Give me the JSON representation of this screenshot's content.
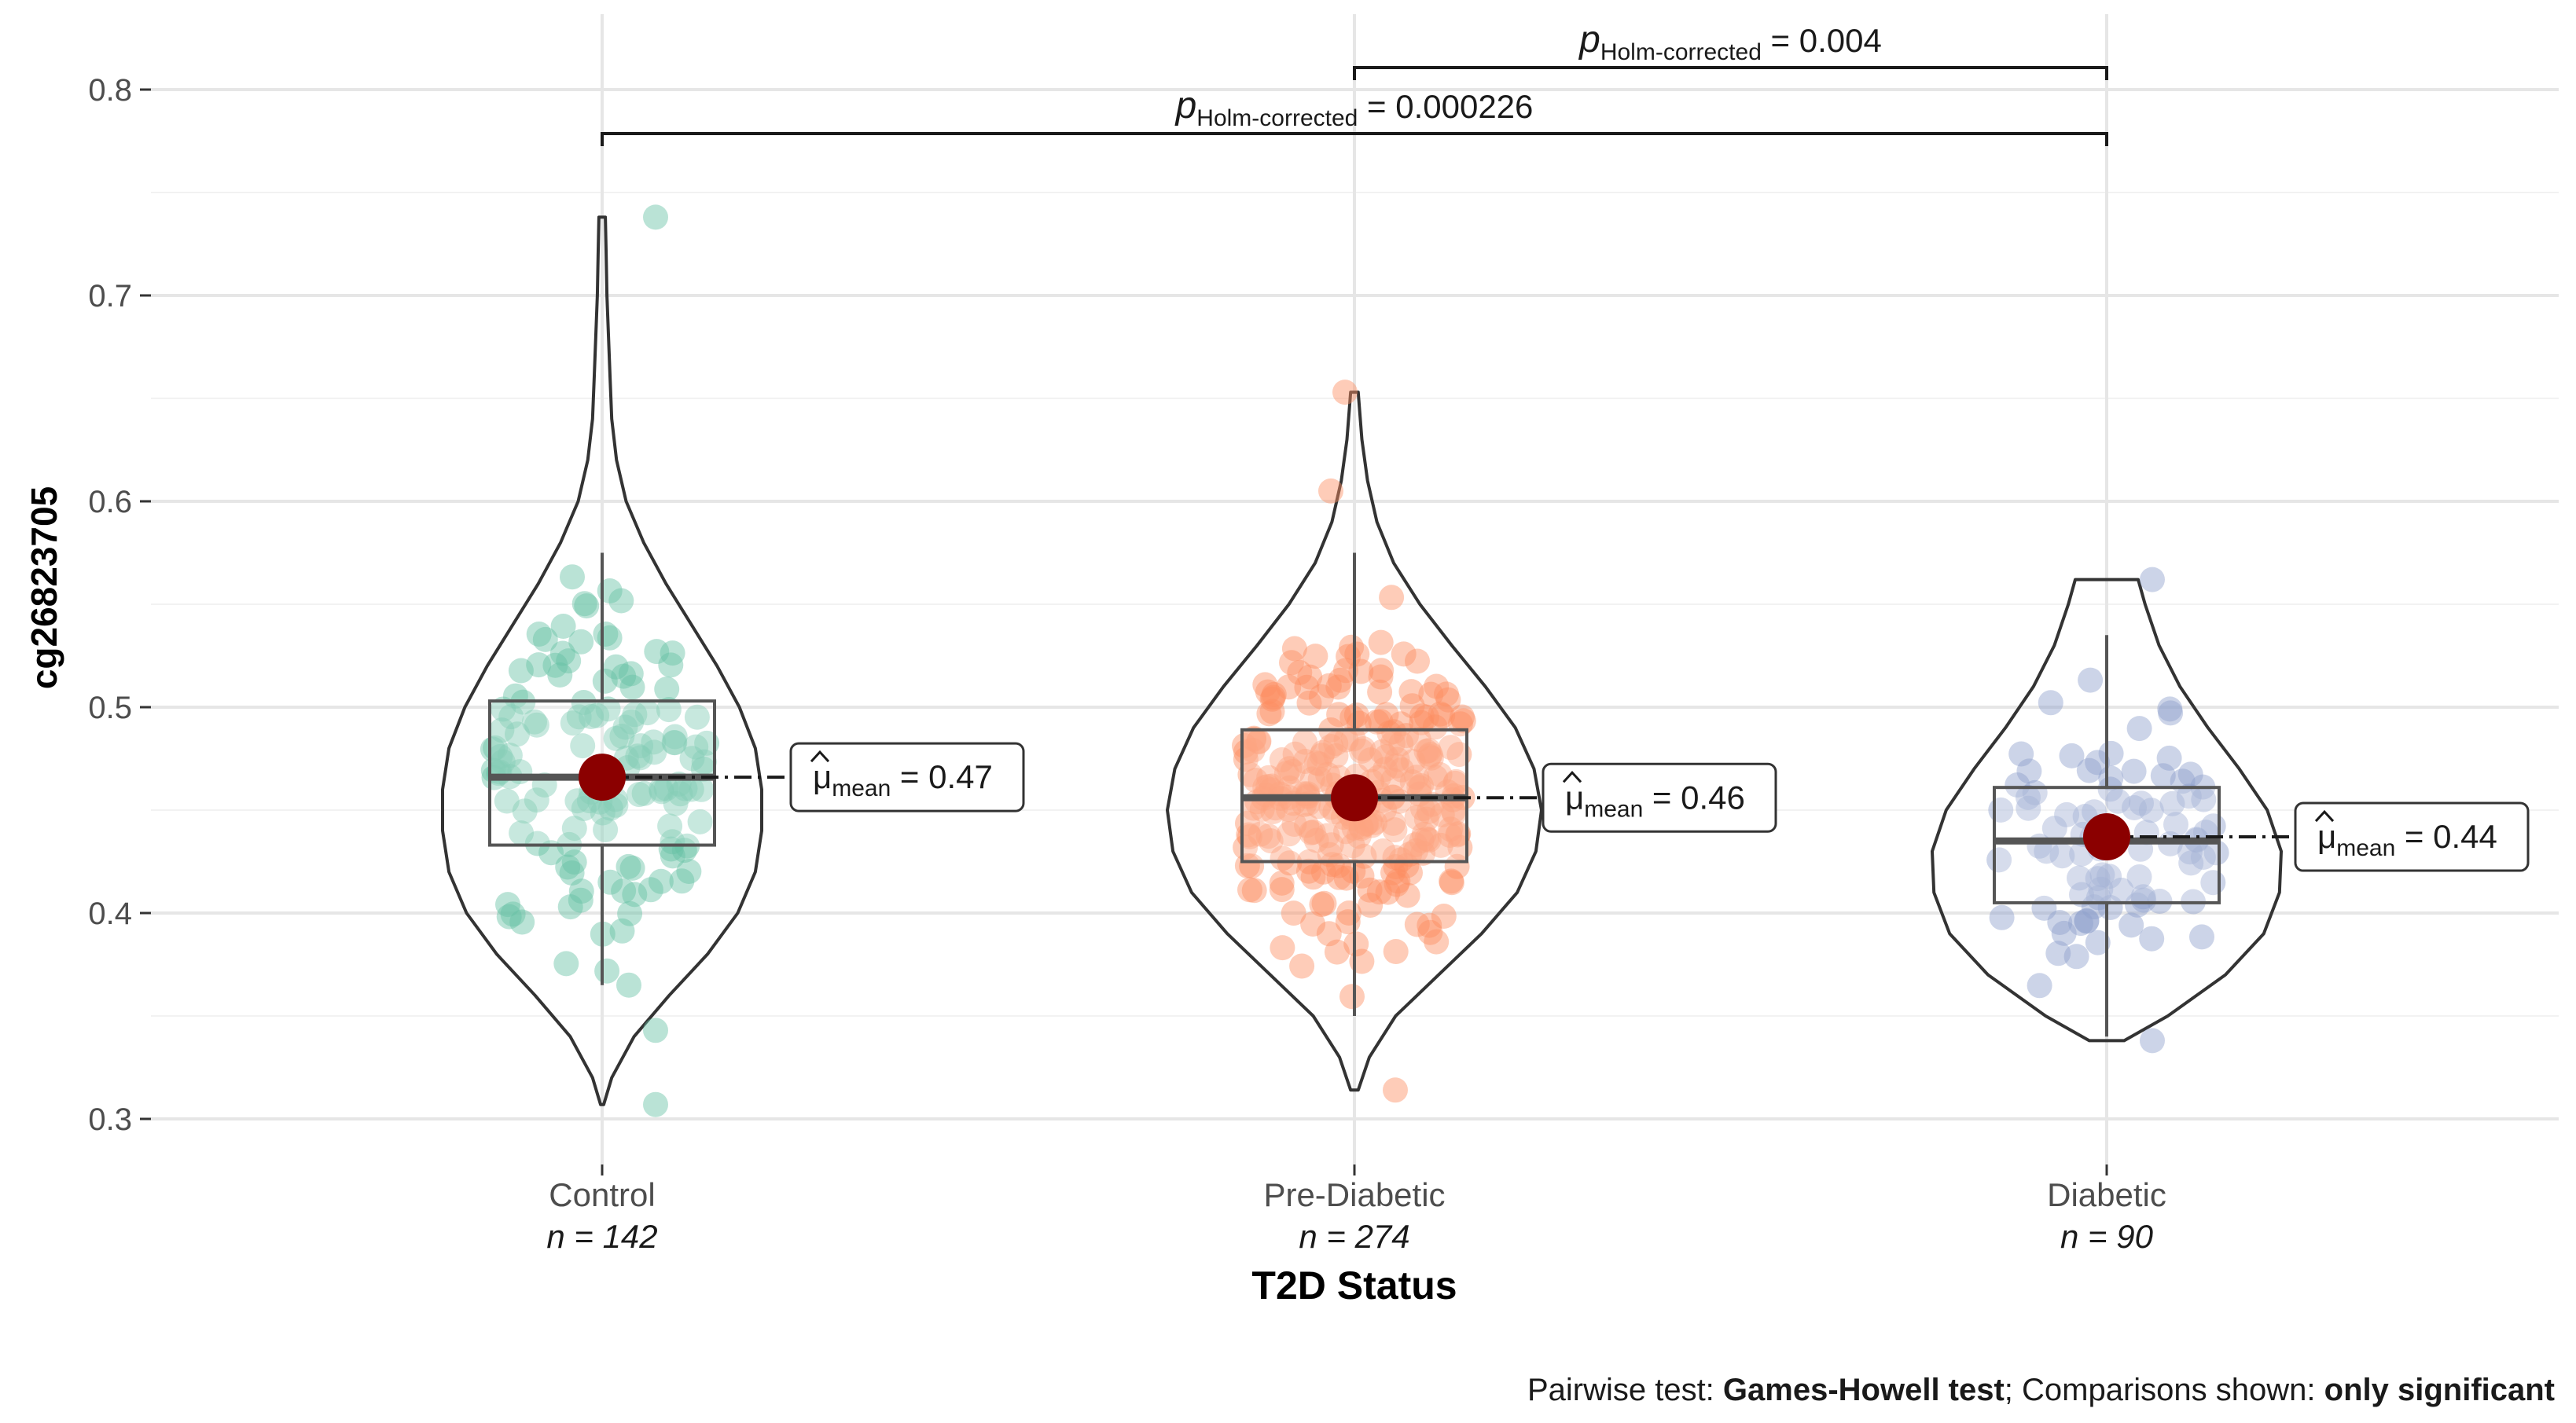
{
  "chart_data": {
    "type": "violin-box-scatter",
    "xlabel": "T2D Status",
    "ylabel": "cg26823705",
    "ylim": [
      0.28,
      0.82
    ],
    "yticks": [
      0.3,
      0.4,
      0.5,
      0.6,
      0.7,
      0.8
    ],
    "ytick_labels": [
      "0.3",
      "0.4",
      "0.5",
      "0.6",
      "0.7",
      "0.8"
    ],
    "grid": true,
    "groups": [
      {
        "name": "Control",
        "n_label": "n = 142",
        "n": 142,
        "color": "#66c2a5",
        "box": {
          "q1": 0.433,
          "median": 0.466,
          "q3": 0.503,
          "whisker_low": 0.365,
          "whisker_high": 0.575
        },
        "range": [
          0.307,
          0.738
        ],
        "mean": 0.466,
        "mean_label": "= 0.47",
        "violin": {
          "y": [
            0.307,
            0.32,
            0.34,
            0.36,
            0.38,
            0.4,
            0.42,
            0.44,
            0.46,
            0.48,
            0.5,
            0.52,
            0.54,
            0.56,
            0.58,
            0.6,
            0.62,
            0.64,
            0.66,
            0.68,
            0.7,
            0.72,
            0.738
          ],
          "w": [
            0.01,
            0.06,
            0.2,
            0.42,
            0.66,
            0.85,
            0.96,
            1.0,
            1.0,
            0.96,
            0.86,
            0.72,
            0.56,
            0.4,
            0.26,
            0.15,
            0.09,
            0.06,
            0.05,
            0.04,
            0.03,
            0.025,
            0.02
          ]
        },
        "outliers": [
          0.738,
          0.307,
          0.343
        ]
      },
      {
        "name": "Pre-Diabetic",
        "n_label": "n = 274",
        "n": 274,
        "color": "#fc8d62",
        "box": {
          "q1": 0.425,
          "median": 0.456,
          "q3": 0.489,
          "whisker_low": 0.35,
          "whisker_high": 0.575
        },
        "range": [
          0.314,
          0.653
        ],
        "mean": 0.456,
        "mean_label": "= 0.46",
        "violin": {
          "y": [
            0.314,
            0.33,
            0.35,
            0.37,
            0.39,
            0.41,
            0.43,
            0.45,
            0.47,
            0.49,
            0.51,
            0.53,
            0.55,
            0.57,
            0.59,
            0.61,
            0.63,
            0.653
          ],
          "w": [
            0.02,
            0.08,
            0.22,
            0.45,
            0.68,
            0.87,
            0.97,
            1.0,
            0.96,
            0.86,
            0.7,
            0.52,
            0.35,
            0.21,
            0.12,
            0.07,
            0.04,
            0.02
          ]
        },
        "outliers": [
          0.653,
          0.605,
          0.314
        ]
      },
      {
        "name": "Diabetic",
        "n_label": "n = 90",
        "n": 90,
        "color": "#8da0cb",
        "box": {
          "q1": 0.405,
          "median": 0.435,
          "q3": 0.461,
          "whisker_low": 0.34,
          "whisker_high": 0.535
        },
        "range": [
          0.338,
          0.562
        ],
        "mean": 0.437,
        "mean_label": "= 0.44",
        "violin": {
          "y": [
            0.338,
            0.35,
            0.37,
            0.39,
            0.41,
            0.43,
            0.45,
            0.47,
            0.49,
            0.51,
            0.53,
            0.55,
            0.562
          ],
          "w": [
            0.1,
            0.35,
            0.68,
            0.9,
            0.99,
            1.0,
            0.92,
            0.76,
            0.58,
            0.42,
            0.3,
            0.22,
            0.18
          ]
        },
        "outliers": [
          0.562,
          0.338
        ]
      }
    ],
    "comparisons": [
      {
        "from": "Pre-Diabetic",
        "to": "Diabetic",
        "p_symbol": "p",
        "p_sub": "Holm-corrected",
        "p_value": "= 0.004"
      },
      {
        "from": "Control",
        "to": "Diabetic",
        "p_symbol": "p",
        "p_sub": "Holm-corrected",
        "p_value": "= 0.000226"
      }
    ],
    "mean_symbol": "μ",
    "mean_sub": "mean",
    "caption": {
      "prefix": "Pairwise test: ",
      "test": "Games-Howell test",
      "middle": "; Comparisons shown: ",
      "shown": "only significant"
    }
  }
}
